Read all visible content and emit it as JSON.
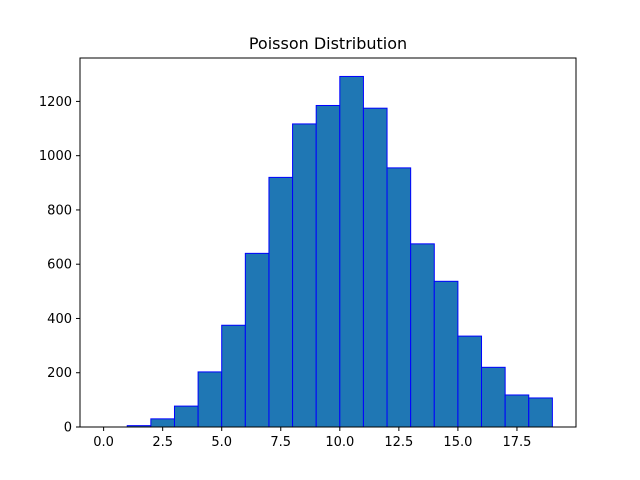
{
  "chart_data": {
    "type": "bar",
    "title": "Poisson Distribution",
    "xlabel": "",
    "ylabel": "",
    "xlim": [
      -1.0,
      20.0
    ],
    "ylim": [
      0,
      1360
    ],
    "xticks": [
      0.0,
      2.5,
      5.0,
      7.5,
      10.0,
      12.5,
      15.0,
      17.5
    ],
    "xtick_labels": [
      "0.0",
      "2.5",
      "5.0",
      "7.5",
      "10.0",
      "12.5",
      "15.0",
      "17.5"
    ],
    "yticks": [
      0,
      200,
      400,
      600,
      800,
      1000,
      1200
    ],
    "ytick_labels": [
      "0",
      "200",
      "400",
      "600",
      "800",
      "1000",
      "1200"
    ],
    "grid": false,
    "bar_color": "#1f77b4",
    "edge_color": "#0000ff",
    "bins": [
      {
        "start": 0.0,
        "end": 1.0,
        "count": 0
      },
      {
        "start": 1.0,
        "end": 2.0,
        "count": 5
      },
      {
        "start": 2.0,
        "end": 3.0,
        "count": 30
      },
      {
        "start": 3.0,
        "end": 4.0,
        "count": 77
      },
      {
        "start": 4.0,
        "end": 5.0,
        "count": 203
      },
      {
        "start": 5.0,
        "end": 6.0,
        "count": 375
      },
      {
        "start": 6.0,
        "end": 7.0,
        "count": 640
      },
      {
        "start": 7.0,
        "end": 8.0,
        "count": 920
      },
      {
        "start": 8.0,
        "end": 9.0,
        "count": 1117
      },
      {
        "start": 9.0,
        "end": 10.0,
        "count": 1185
      },
      {
        "start": 10.0,
        "end": 11.0,
        "count": 1292
      },
      {
        "start": 11.0,
        "end": 12.0,
        "count": 1175
      },
      {
        "start": 12.0,
        "end": 13.0,
        "count": 955
      },
      {
        "start": 13.0,
        "end": 14.0,
        "count": 675
      },
      {
        "start": 14.0,
        "end": 15.0,
        "count": 537
      },
      {
        "start": 15.0,
        "end": 16.0,
        "count": 335
      },
      {
        "start": 16.0,
        "end": 17.0,
        "count": 220
      },
      {
        "start": 17.0,
        "end": 18.0,
        "count": 118
      },
      {
        "start": 18.0,
        "end": 19.0,
        "count": 107
      }
    ]
  }
}
